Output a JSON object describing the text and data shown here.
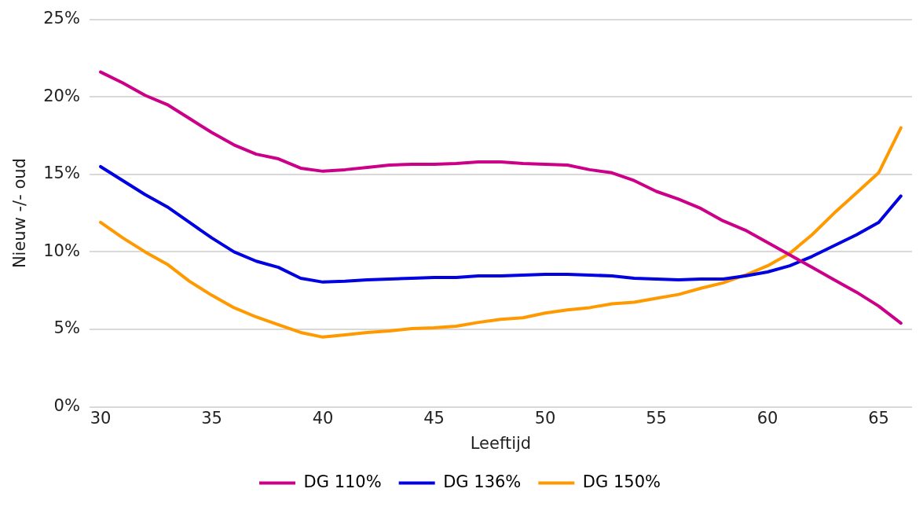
{
  "chart_data": {
    "type": "line",
    "xlabel": "Leeftijd",
    "ylabel": "Nieuw -/- oud",
    "x": [
      30,
      31,
      32,
      33,
      34,
      35,
      36,
      37,
      38,
      39,
      40,
      41,
      42,
      43,
      44,
      45,
      46,
      47,
      48,
      49,
      50,
      51,
      52,
      53,
      54,
      55,
      56,
      57,
      58,
      59,
      60,
      61,
      62,
      63,
      64,
      65,
      66
    ],
    "series": [
      {
        "name": "DG 110%",
        "color": "#cc0088",
        "values": [
          21.6,
          20.9,
          20.1,
          19.5,
          18.6,
          17.7,
          16.9,
          16.3,
          16.0,
          15.4,
          15.2,
          15.3,
          15.45,
          15.6,
          15.65,
          15.65,
          15.7,
          15.8,
          15.8,
          15.7,
          15.65,
          15.6,
          15.3,
          15.1,
          14.6,
          13.9,
          13.4,
          12.8,
          12.0,
          11.4,
          10.6,
          9.8,
          9.0,
          8.2,
          7.4,
          6.5,
          5.4
        ]
      },
      {
        "name": "DG 136%",
        "color": "#0000e0",
        "values": [
          15.5,
          14.6,
          13.7,
          12.9,
          11.9,
          10.9,
          10.0,
          9.4,
          9.0,
          8.3,
          8.05,
          8.1,
          8.2,
          8.25,
          8.3,
          8.35,
          8.35,
          8.45,
          8.45,
          8.5,
          8.55,
          8.55,
          8.5,
          8.45,
          8.3,
          8.25,
          8.2,
          8.25,
          8.25,
          8.45,
          8.7,
          9.1,
          9.7,
          10.4,
          11.1,
          11.9,
          13.6
        ]
      },
      {
        "name": "DG 150%",
        "color": "#ff9900",
        "values": [
          11.9,
          10.9,
          10.0,
          9.2,
          8.1,
          7.2,
          6.4,
          5.8,
          5.3,
          4.8,
          4.5,
          4.65,
          4.8,
          4.9,
          5.05,
          5.1,
          5.2,
          5.45,
          5.65,
          5.75,
          6.05,
          6.25,
          6.4,
          6.65,
          6.75,
          7.0,
          7.25,
          7.65,
          8.0,
          8.5,
          9.1,
          9.9,
          11.1,
          12.5,
          13.8,
          15.1,
          18.0
        ]
      }
    ],
    "xlim": [
      29.5,
      66.5
    ],
    "xticks": [
      30,
      35,
      40,
      45,
      50,
      55,
      60,
      65
    ],
    "ylim": [
      0,
      25
    ],
    "yticks": [
      {
        "value": 0,
        "label": "0%"
      },
      {
        "value": 5,
        "label": "5%"
      },
      {
        "value": 10,
        "label": "10%"
      },
      {
        "value": 15,
        "label": "15%"
      },
      {
        "value": 20,
        "label": "20%"
      },
      {
        "value": 25,
        "label": "25%"
      }
    ],
    "grid": "y",
    "legend": "bottom",
    "marker": "none",
    "line_style": "solid"
  }
}
